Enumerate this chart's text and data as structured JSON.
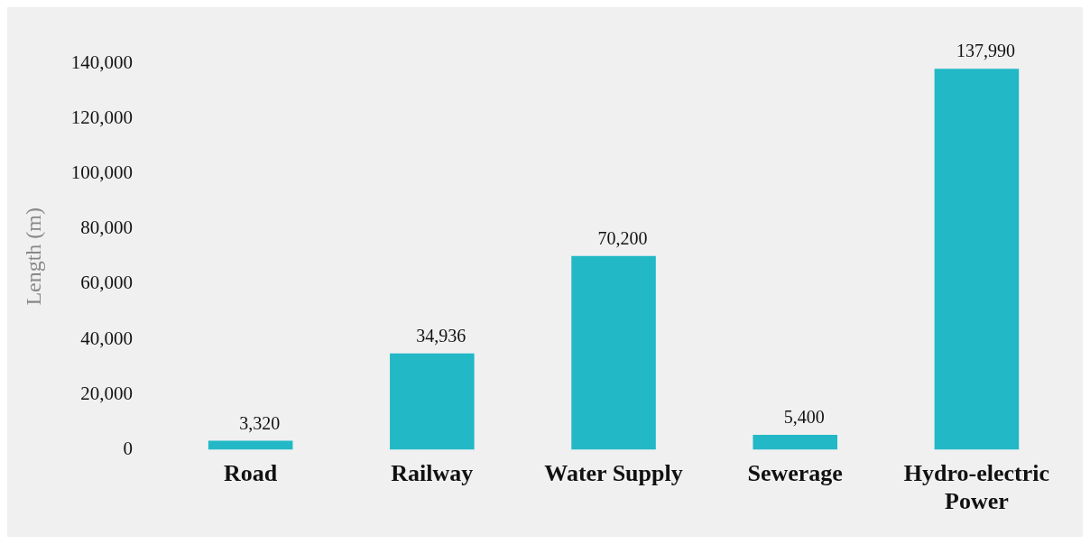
{
  "chart_data": {
    "type": "bar",
    "ylabel": "Length (m)",
    "categories": [
      "Road",
      "Railway",
      "Water Supply",
      "Sewerage",
      "Hydro-electric Power"
    ],
    "values": [
      3320,
      34936,
      70200,
      5400,
      137990
    ],
    "color": "#22b8c6",
    "ylim": [
      0,
      140000
    ],
    "yticks": [
      {
        "value": 0,
        "label": "0"
      },
      {
        "value": 20000,
        "label": "20,000"
      },
      {
        "value": 40000,
        "label": "40,000"
      },
      {
        "value": 60000,
        "label": "60,000"
      },
      {
        "value": 80000,
        "label": "80,000"
      },
      {
        "value": 100000,
        "label": "100,000"
      },
      {
        "value": 120000,
        "label": "120,000"
      },
      {
        "value": 140000,
        "label": "140,000"
      }
    ],
    "value_labels": [
      "3,320",
      "34,936",
      "70,200",
      "5,400",
      "137,990"
    ],
    "grid": false,
    "legend": false
  }
}
